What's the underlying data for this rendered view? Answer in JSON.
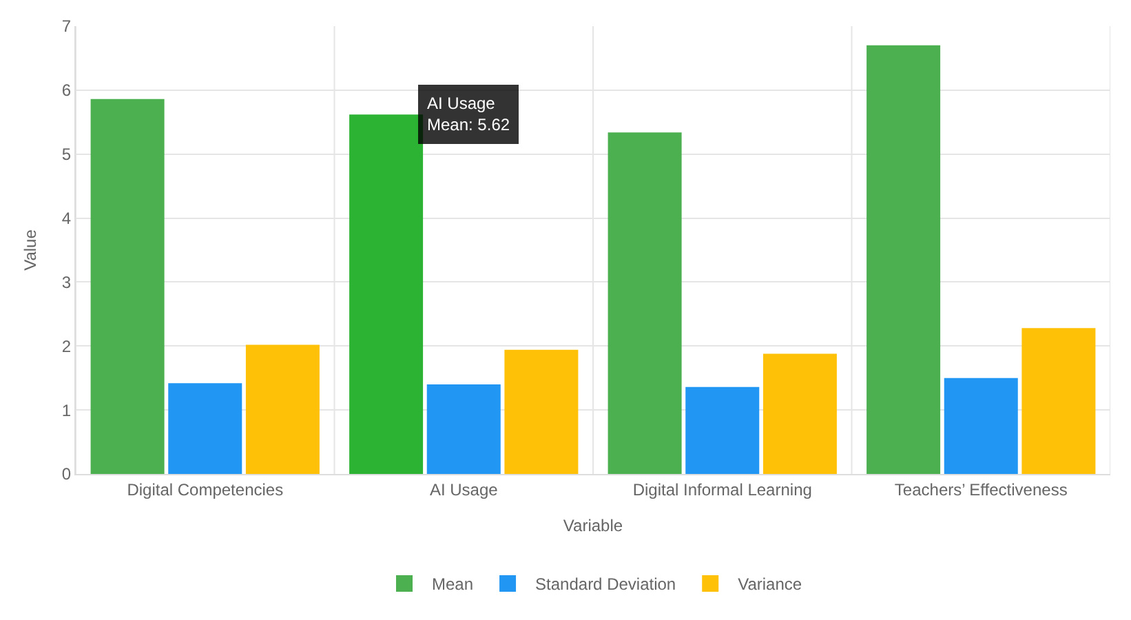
{
  "chart_data": {
    "type": "bar",
    "xlabel": "Variable",
    "ylabel": "Value",
    "categories": [
      "Digital Competencies",
      "AI Usage",
      "Digital Informal Learning",
      "Teachers’ Effectiveness"
    ],
    "series": [
      {
        "name": "Mean",
        "color": "#4caf50",
        "colors": [
          "#4caf50",
          "#2db334",
          "#4caf50",
          "#4caf50"
        ],
        "values": [
          5.86,
          5.62,
          5.34,
          6.7
        ]
      },
      {
        "name": "Standard Deviation",
        "color": "#2196f3",
        "values": [
          1.42,
          1.4,
          1.36,
          1.5
        ]
      },
      {
        "name": "Variance",
        "color": "#ffc107",
        "values": [
          2.02,
          1.94,
          1.88,
          2.28
        ]
      }
    ],
    "ylim": [
      0,
      7
    ],
    "yticks": [
      0,
      1,
      2,
      3,
      4,
      5,
      6,
      7
    ],
    "grid": true,
    "legend": "bottom",
    "annotations": [
      "AI Usage\nMean: 5.62"
    ]
  }
}
